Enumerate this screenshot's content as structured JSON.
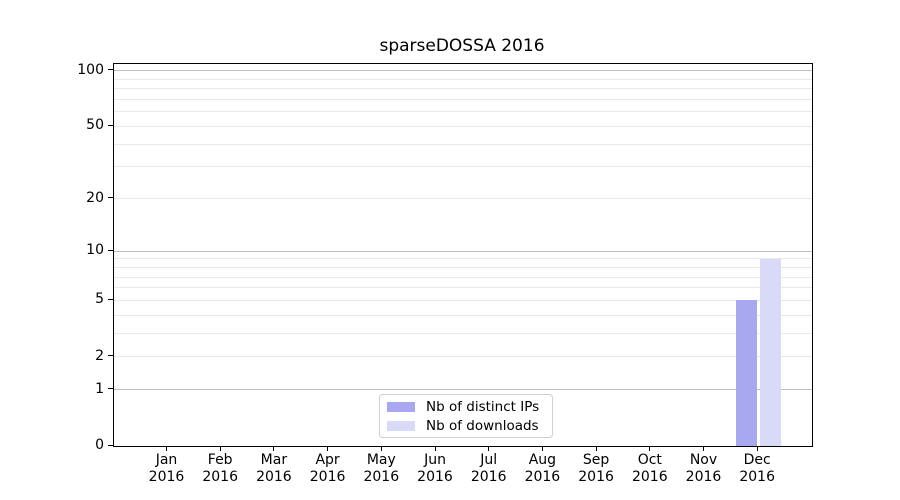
{
  "chart_data": {
    "type": "bar",
    "title": "sparseDOSSA 2016",
    "xlabel": "",
    "ylabel": "",
    "categories": [
      "Jan",
      "Feb",
      "Mar",
      "Apr",
      "May",
      "Jun",
      "Jul",
      "Aug",
      "Sep",
      "Oct",
      "Nov",
      "Dec"
    ],
    "category_year": "2016",
    "series": [
      {
        "name": "Nb of distinct IPs",
        "color": "#a8a8f0",
        "values": [
          0,
          0,
          0,
          0,
          0,
          0,
          0,
          0,
          0,
          0,
          0,
          5
        ]
      },
      {
        "name": "Nb of downloads",
        "color": "#d9d9f8",
        "values": [
          0,
          0,
          0,
          0,
          0,
          0,
          0,
          0,
          0,
          0,
          0,
          9
        ]
      }
    ],
    "yscale": "log1p",
    "ylim": [
      0,
      109
    ],
    "y_ticks": [
      0,
      1,
      2,
      5,
      10,
      20,
      50,
      100
    ],
    "y_grid_major": [
      1,
      10,
      100
    ],
    "y_grid_minor": [
      2,
      3,
      4,
      5,
      6,
      7,
      8,
      9,
      20,
      30,
      40,
      50,
      60,
      70,
      80,
      90
    ],
    "legend_position": "lower center",
    "grid_major_color": "#bdbdbd",
    "grid_minor_color": "#e9e9e9",
    "axis_color": "#000000"
  }
}
